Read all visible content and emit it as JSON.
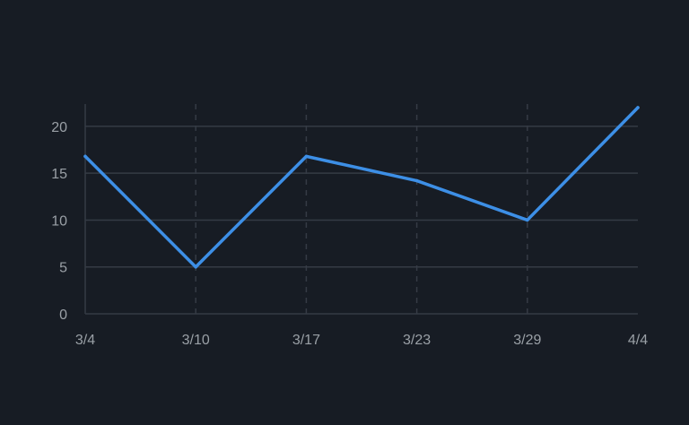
{
  "chart_data": {
    "type": "line",
    "x": [
      "3/4",
      "3/10",
      "3/17",
      "3/23",
      "3/29",
      "4/4"
    ],
    "y_ticks": [
      0,
      5,
      10,
      15,
      20
    ],
    "ylim": [
      0,
      22
    ],
    "series": [
      {
        "values": [
          16.8,
          5.0,
          16.8,
          14.2,
          10.0,
          22.0
        ]
      }
    ],
    "grid": {
      "horizontal": true,
      "vertical_dashed": true
    },
    "line_color": "#3d8fe6",
    "grid_color": "#353b45",
    "background_color": "#171c24",
    "label_color": "#9aa0a6"
  }
}
